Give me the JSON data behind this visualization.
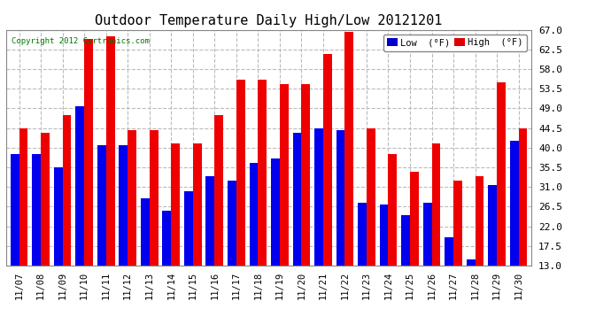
{
  "title": "Outdoor Temperature Daily High/Low 20121201",
  "copyright": "Copyright 2012 Cartronics.com",
  "background_color": "#ffffff",
  "plot_bg_color": "#ffffff",
  "grid_color": "#bbbbbb",
  "legend_low_color": "#0000cc",
  "legend_high_color": "#dd0000",
  "bar_low_color": "#0000ee",
  "bar_high_color": "#ee0000",
  "ylim": [
    13.0,
    67.0
  ],
  "yticks": [
    13.0,
    17.5,
    22.0,
    26.5,
    31.0,
    35.5,
    40.0,
    44.5,
    49.0,
    53.5,
    58.0,
    62.5,
    67.0
  ],
  "categories": [
    "11/07",
    "11/08",
    "11/09",
    "11/10",
    "11/11",
    "11/12",
    "11/13",
    "11/14",
    "11/15",
    "11/16",
    "11/17",
    "11/18",
    "11/19",
    "11/20",
    "11/21",
    "11/22",
    "11/23",
    "11/24",
    "11/25",
    "11/26",
    "11/27",
    "11/28",
    "11/29",
    "11/30"
  ],
  "low_values": [
    38.5,
    38.5,
    35.5,
    49.5,
    40.5,
    40.5,
    28.5,
    25.5,
    30.0,
    33.5,
    32.5,
    36.5,
    37.5,
    43.5,
    44.5,
    44.0,
    27.5,
    27.0,
    24.5,
    27.5,
    19.5,
    14.5,
    31.5,
    41.5
  ],
  "high_values": [
    44.5,
    43.5,
    47.5,
    65.0,
    65.5,
    44.0,
    44.0,
    41.0,
    41.0,
    47.5,
    55.5,
    55.5,
    54.5,
    54.5,
    61.5,
    66.5,
    44.5,
    38.5,
    34.5,
    41.0,
    32.5,
    33.5,
    55.0,
    44.5
  ],
  "bar_baseline": 13.0
}
